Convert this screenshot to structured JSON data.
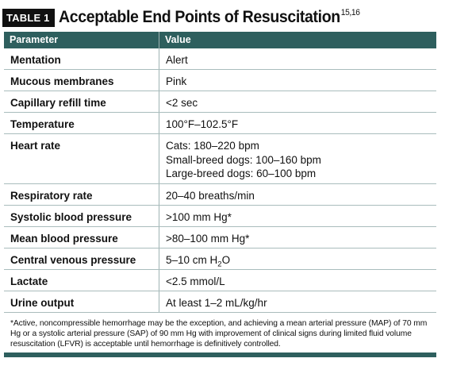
{
  "title": {
    "badge": "TABLE 1",
    "text": "Acceptable End Points of Resuscitation",
    "refs": "15,16"
  },
  "table": {
    "headers": [
      "Parameter",
      "Value"
    ],
    "rows": [
      {
        "parameter": "Mentation",
        "value": [
          "Alert"
        ]
      },
      {
        "parameter": "Mucous membranes",
        "value": [
          "Pink"
        ]
      },
      {
        "parameter": "Capillary refill time",
        "value": [
          "<2 sec"
        ]
      },
      {
        "parameter": "Temperature",
        "value": [
          "100°F–102.5°F"
        ]
      },
      {
        "parameter": "Heart rate",
        "value": [
          "Cats: 180–220 bpm",
          "Small-breed dogs: 100–160 bpm",
          "Large-breed dogs: 60–100 bpm"
        ]
      },
      {
        "parameter": "Respiratory rate",
        "value": [
          "20–40 breaths/min"
        ]
      },
      {
        "parameter": "Systolic blood pressure",
        "value": [
          ">100 mm Hg*"
        ]
      },
      {
        "parameter": "Mean blood pressure",
        "value": [
          ">80–100 mm Hg*"
        ]
      },
      {
        "parameter": "Central venous pressure",
        "value_prefix": "5–10 cm H",
        "value_sub": "2",
        "value_suffix": "O"
      },
      {
        "parameter": "Lactate",
        "value": [
          "<2.5 mmol/L"
        ]
      },
      {
        "parameter": "Urine output",
        "value": [
          "At least 1–2 mL/kg/hr"
        ]
      }
    ],
    "footnote": "*Active, noncompressible hemorrhage may be the exception, and achieving a mean arterial pressure (MAP) of 70 mm Hg or a systolic arterial pressure (SAP) of 90 mm Hg with improvement of clinical signs during limited fluid volume resuscitation (LFVR) is acceptable until hemorrhage is definitively controlled."
  },
  "colors": {
    "header_fill": "#2e5f5e",
    "badge_fill": "#111111",
    "row_rule": "#a9bcbc"
  }
}
